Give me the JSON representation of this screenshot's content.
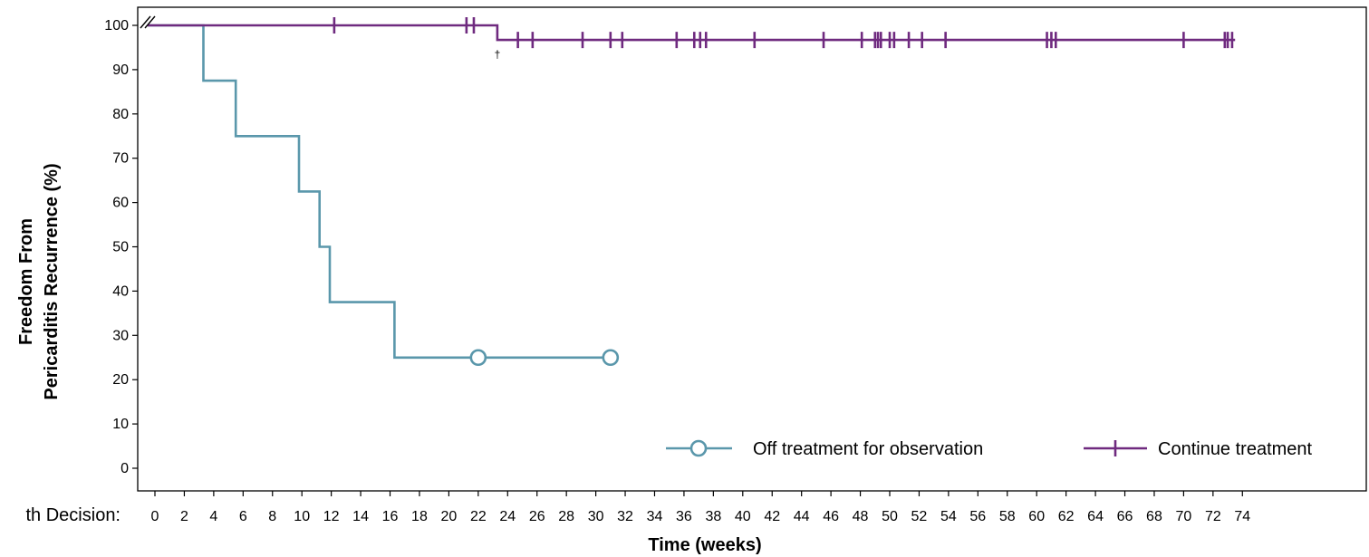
{
  "chart_data": {
    "type": "line",
    "subtype": "kaplan-meier step",
    "ylabel_lines": [
      "Freedom From",
      "Pericarditis Recurrence (%)"
    ],
    "xlabel": "Time (weeks)",
    "row_label": "th Decision:",
    "ylim": [
      0,
      100
    ],
    "yticks": [
      0,
      10,
      20,
      30,
      40,
      50,
      60,
      70,
      80,
      90,
      100
    ],
    "xlim": [
      0,
      74
    ],
    "xticks": [
      0,
      2,
      4,
      6,
      8,
      10,
      12,
      14,
      16,
      18,
      20,
      22,
      24,
      26,
      28,
      30,
      32,
      34,
      36,
      38,
      40,
      42,
      44,
      46,
      48,
      50,
      52,
      54,
      56,
      58,
      60,
      62,
      64,
      66,
      68,
      70,
      72,
      74
    ],
    "axis_break_marker": "//",
    "grid": false,
    "legend_position": "bottom-right",
    "annotation": "†",
    "annotation_at": {
      "x": 23.3,
      "y": 96.7
    },
    "series": [
      {
        "name": "Off treatment for observation",
        "color": "#5a97ab",
        "marker": "circle",
        "steps": [
          [
            -0.5,
            100
          ],
          [
            3.3,
            100
          ],
          [
            3.3,
            87.5
          ],
          [
            5.5,
            87.5
          ],
          [
            5.5,
            75
          ],
          [
            9.8,
            75
          ],
          [
            9.8,
            62.5
          ],
          [
            11.2,
            62.5
          ],
          [
            11.2,
            50
          ],
          [
            11.9,
            50
          ],
          [
            11.9,
            37.5
          ],
          [
            16.3,
            37.5
          ],
          [
            16.3,
            25
          ],
          [
            31.0,
            25
          ]
        ],
        "censor_x": [
          22.0,
          31.0
        ]
      },
      {
        "name": "Continue treatment",
        "color": "#6f2a7f",
        "marker": "plus",
        "steps": [
          [
            -0.5,
            100
          ],
          [
            23.3,
            100
          ],
          [
            23.3,
            96.7
          ],
          [
            73.5,
            96.7
          ]
        ],
        "censor_x": [
          12.2,
          21.2,
          21.7,
          24.7,
          25.7,
          29.1,
          31.0,
          31.8,
          35.5,
          36.7,
          37.1,
          37.5,
          40.8,
          45.5,
          48.1,
          49.0,
          49.2,
          49.4,
          50.0,
          50.3,
          51.3,
          52.2,
          53.8,
          60.7,
          61.0,
          61.3,
          70.0,
          72.8,
          73.0,
          73.3
        ]
      }
    ]
  }
}
